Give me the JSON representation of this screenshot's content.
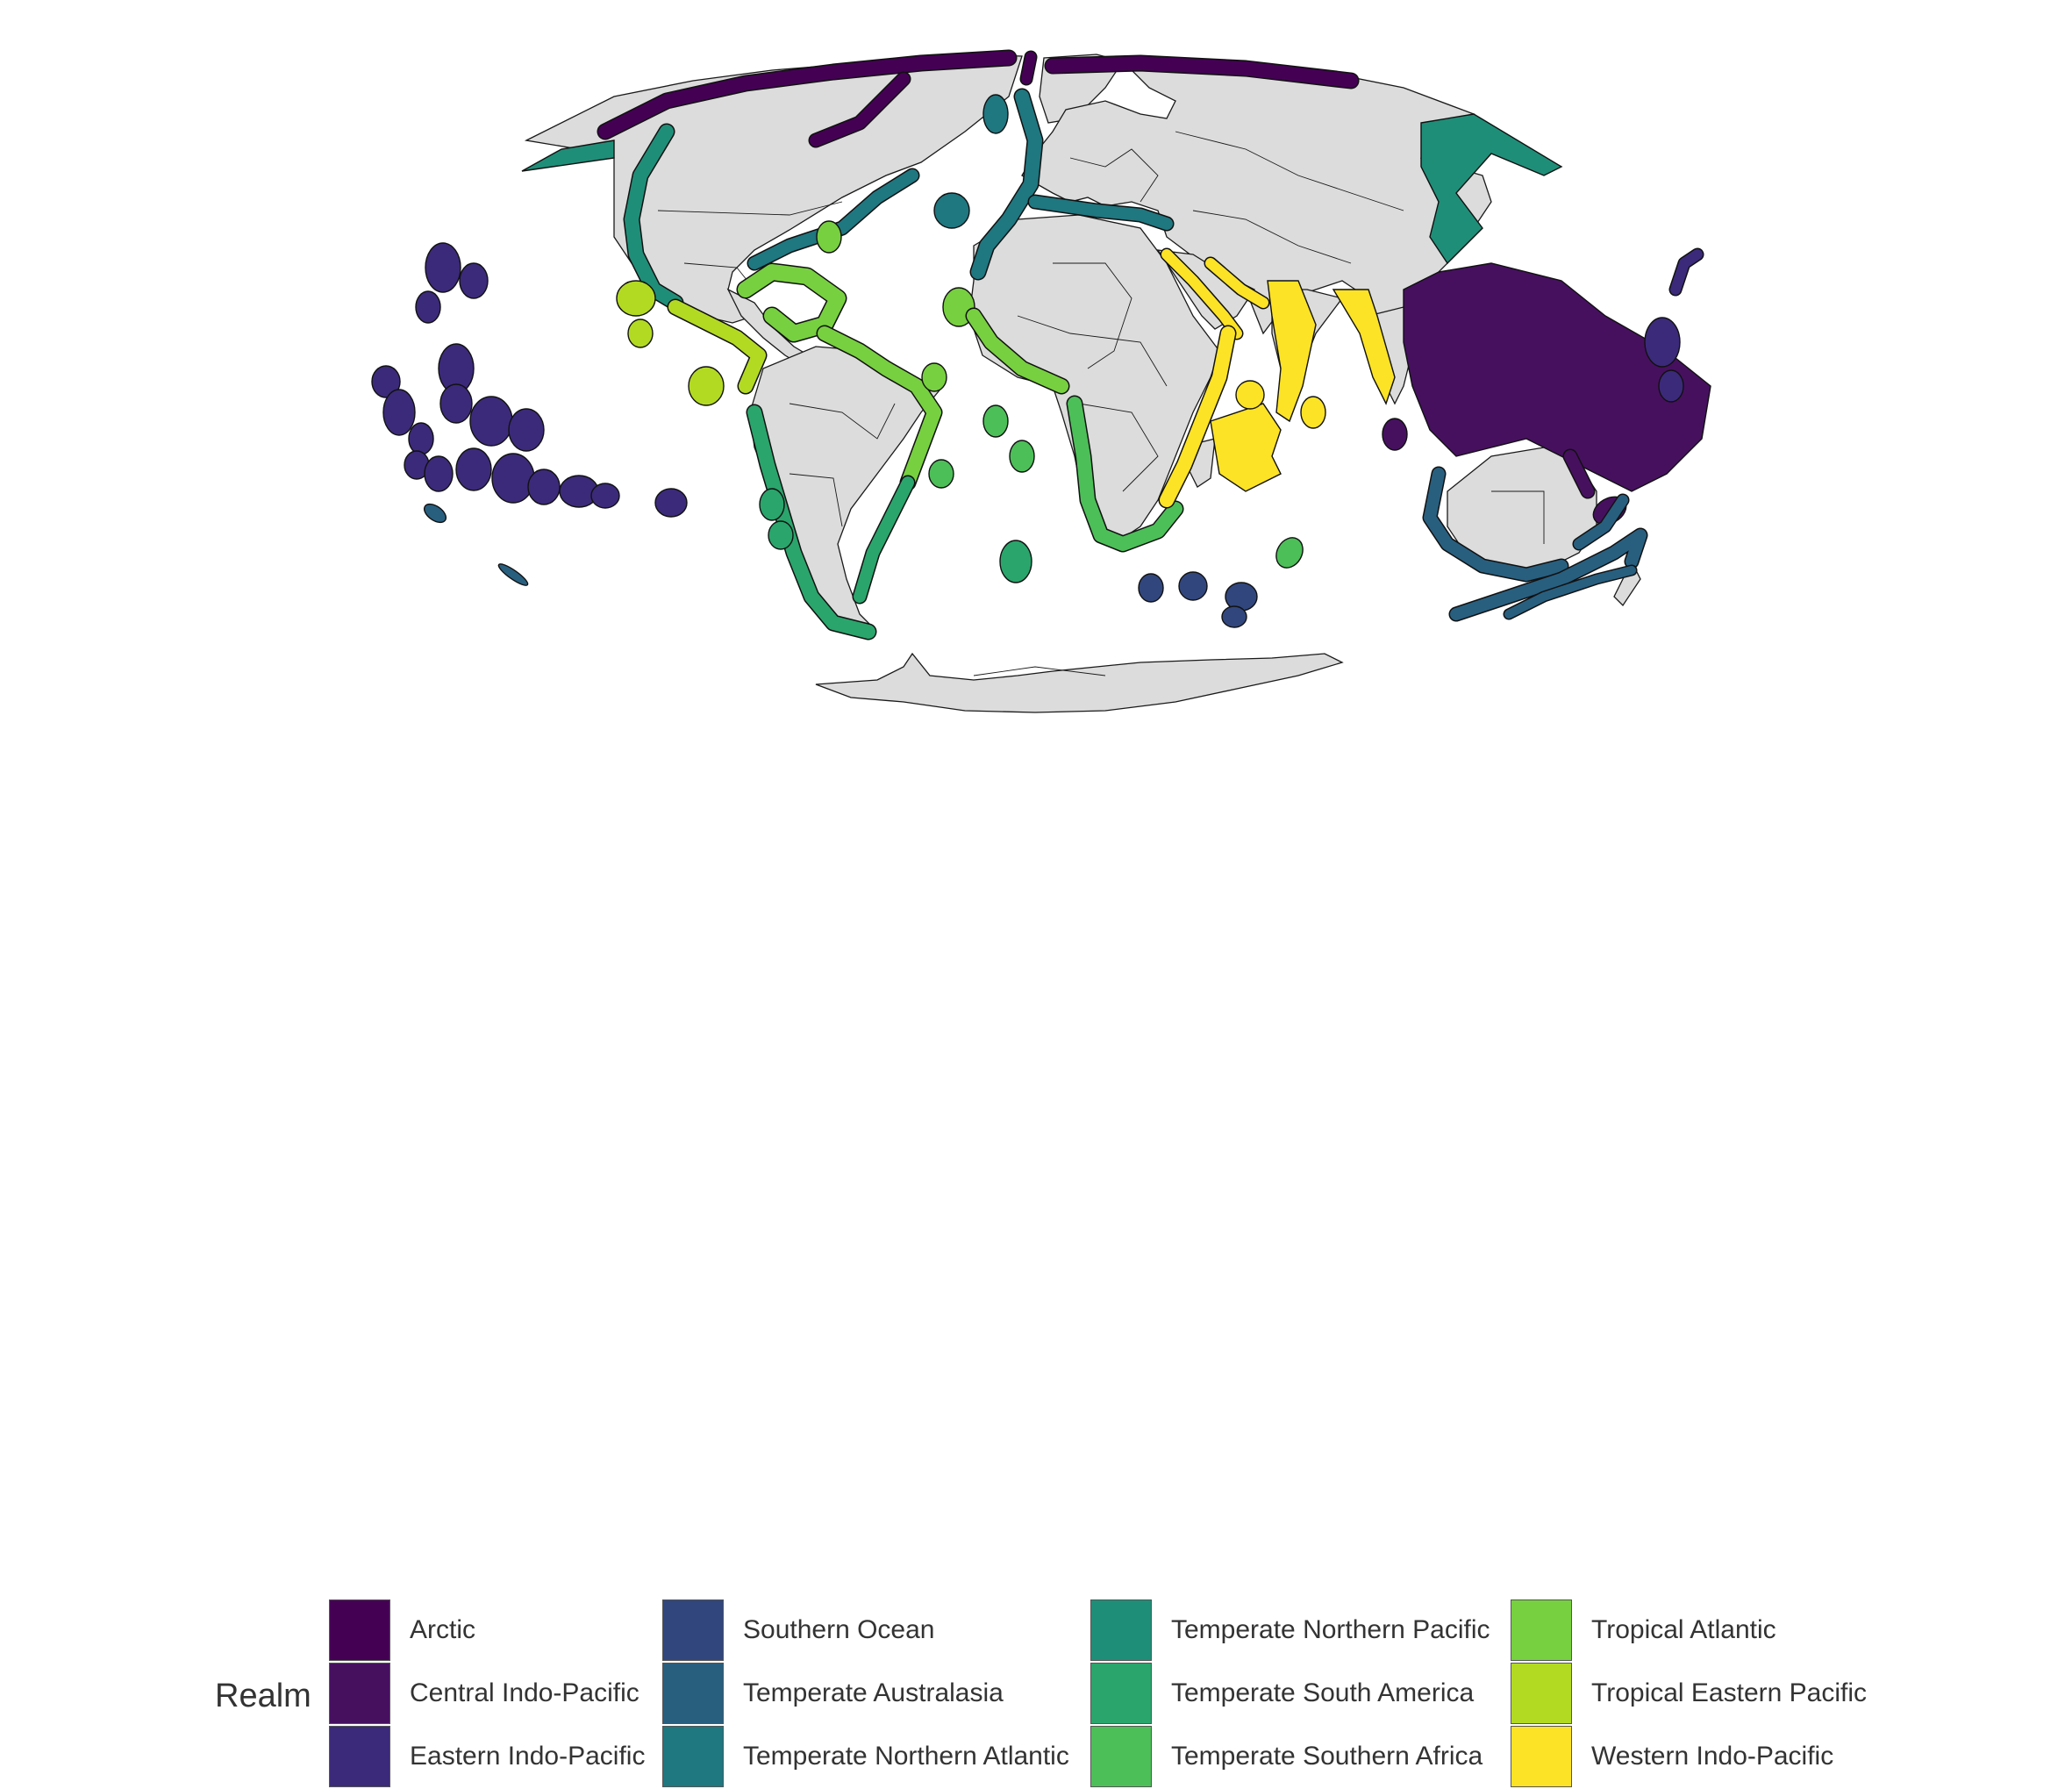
{
  "legend": {
    "title": "Realm",
    "items": [
      {
        "label": "Arctic",
        "color": "#440154"
      },
      {
        "label": "Central Indo-Pacific",
        "color": "#46105f"
      },
      {
        "label": "Eastern Indo-Pacific",
        "color": "#3b2a7a"
      },
      {
        "label": "Southern Ocean",
        "color": "#31467d"
      },
      {
        "label": "Temperate Australasia",
        "color": "#285f7f"
      },
      {
        "label": "Temperate Northern Atlantic",
        "color": "#1f7780"
      },
      {
        "label": "Temperate Northern Pacific",
        "color": "#1f8e78"
      },
      {
        "label": "Temperate South America",
        "color": "#2aa56c"
      },
      {
        "label": "Temperate Southern Africa",
        "color": "#4cbf58"
      },
      {
        "label": "Tropical Atlantic",
        "color": "#77d03f"
      },
      {
        "label": "Tropical Eastern Pacific",
        "color": "#b3da22"
      },
      {
        "label": "Western Indo-Pacific",
        "color": "#fde325"
      }
    ]
  },
  "map": {
    "projection": "Mollweide-like world map",
    "land_color": "#dcdcdc",
    "border_color": "#1a1a1a"
  }
}
